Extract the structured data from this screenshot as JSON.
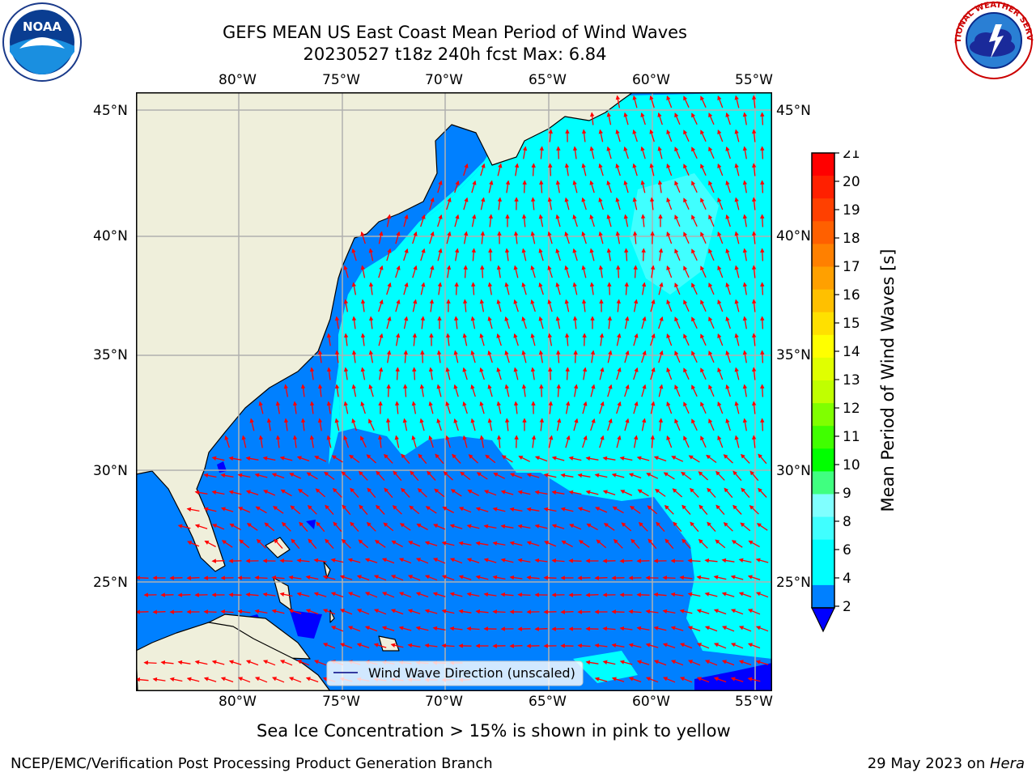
{
  "header": {
    "title_line1": "GEFS MEAN US East Coast Mean Period of Wind Waves",
    "title_line2": "20230527 t18z 240h fcst   Max: 6.84"
  },
  "logos": {
    "left": {
      "icon": "noaa-logo-icon",
      "text": "NOAA"
    },
    "right": {
      "icon": "nws-logo-icon",
      "text": "NATIONAL WEATHER SERVICE"
    }
  },
  "map": {
    "lon_ticks": [
      "80°W",
      "75°W",
      "70°W",
      "65°W",
      "60°W",
      "55°W"
    ],
    "lat_ticks": [
      "45°N",
      "40°N",
      "35°N",
      "30°N",
      "25°N"
    ],
    "legend_label": "Wind Wave Direction (unscaled)",
    "land_color": "#efefdb",
    "ocean_base_color": "#0080ff",
    "arrow_color": "#ff0000",
    "coast_color": "#000000",
    "grid_color": "#b0b0b0"
  },
  "colorbar": {
    "label": "Mean Period of Wind Waves [s]",
    "ticks": [
      "21",
      "20",
      "19",
      "18",
      "17",
      "16",
      "15",
      "14",
      "13",
      "12",
      "11",
      "10",
      "9",
      "8",
      "6",
      "4",
      "2"
    ],
    "colors": [
      "#ff0000",
      "#ff2000",
      "#ff4000",
      "#ff6000",
      "#ff8000",
      "#ffa000",
      "#ffc000",
      "#ffe000",
      "#ffff00",
      "#e0ff00",
      "#c0ff00",
      "#80ff00",
      "#40ff00",
      "#00ff00",
      "#40ff80",
      "#80ffff",
      "#40ffff",
      "#00ffff",
      "#00ffff",
      "#0080ff"
    ],
    "under_color": "#0000ff"
  },
  "footer": {
    "note": "Sea Ice Concentration > 15% is shown in pink to yellow",
    "branch": "NCEP/EMC/Verification Post Processing Product Generation Branch",
    "date": "29 May 2023 on ",
    "machine": "Hera"
  }
}
